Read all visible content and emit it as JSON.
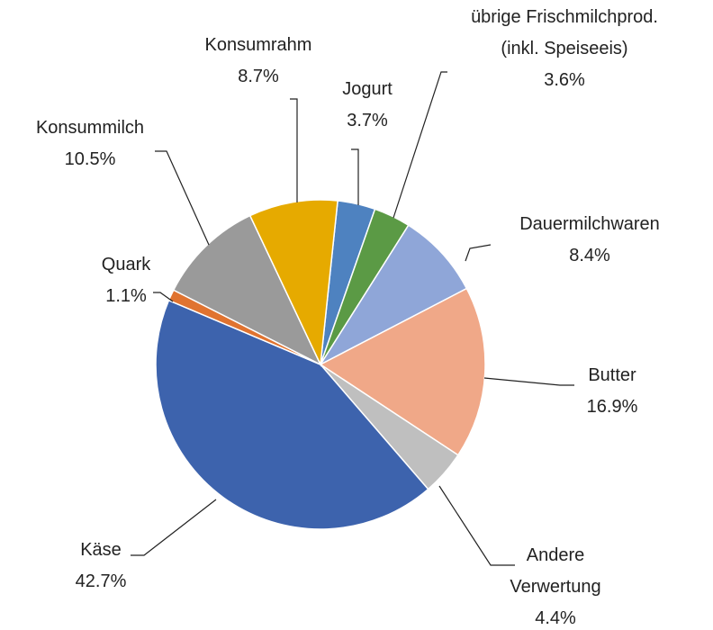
{
  "chart_data": {
    "type": "pie",
    "categories": [
      "Jogurt",
      "übrige Frischmilchprod. (inkl. Speiseeis)",
      "Dauermilchwaren",
      "Butter",
      "Andere Verwertung",
      "Käse",
      "Quark",
      "Konsummilch",
      "Konsumrahm"
    ],
    "values": [
      3.7,
      3.6,
      8.4,
      16.9,
      4.4,
      42.7,
      1.1,
      10.5,
      8.7
    ],
    "value_labels": [
      "3.7%",
      "3.6%",
      "8.4%",
      "16.9%",
      "4.4%",
      "42.7%",
      "1.1%",
      "10.5%",
      "8.7%"
    ],
    "colors": [
      "#4e82c0",
      "#5b9a45",
      "#8fa6d8",
      "#f0a888",
      "#bfbfbf",
      "#3d63ad",
      "#e07330",
      "#9a9a9a",
      "#e6aa00"
    ]
  }
}
